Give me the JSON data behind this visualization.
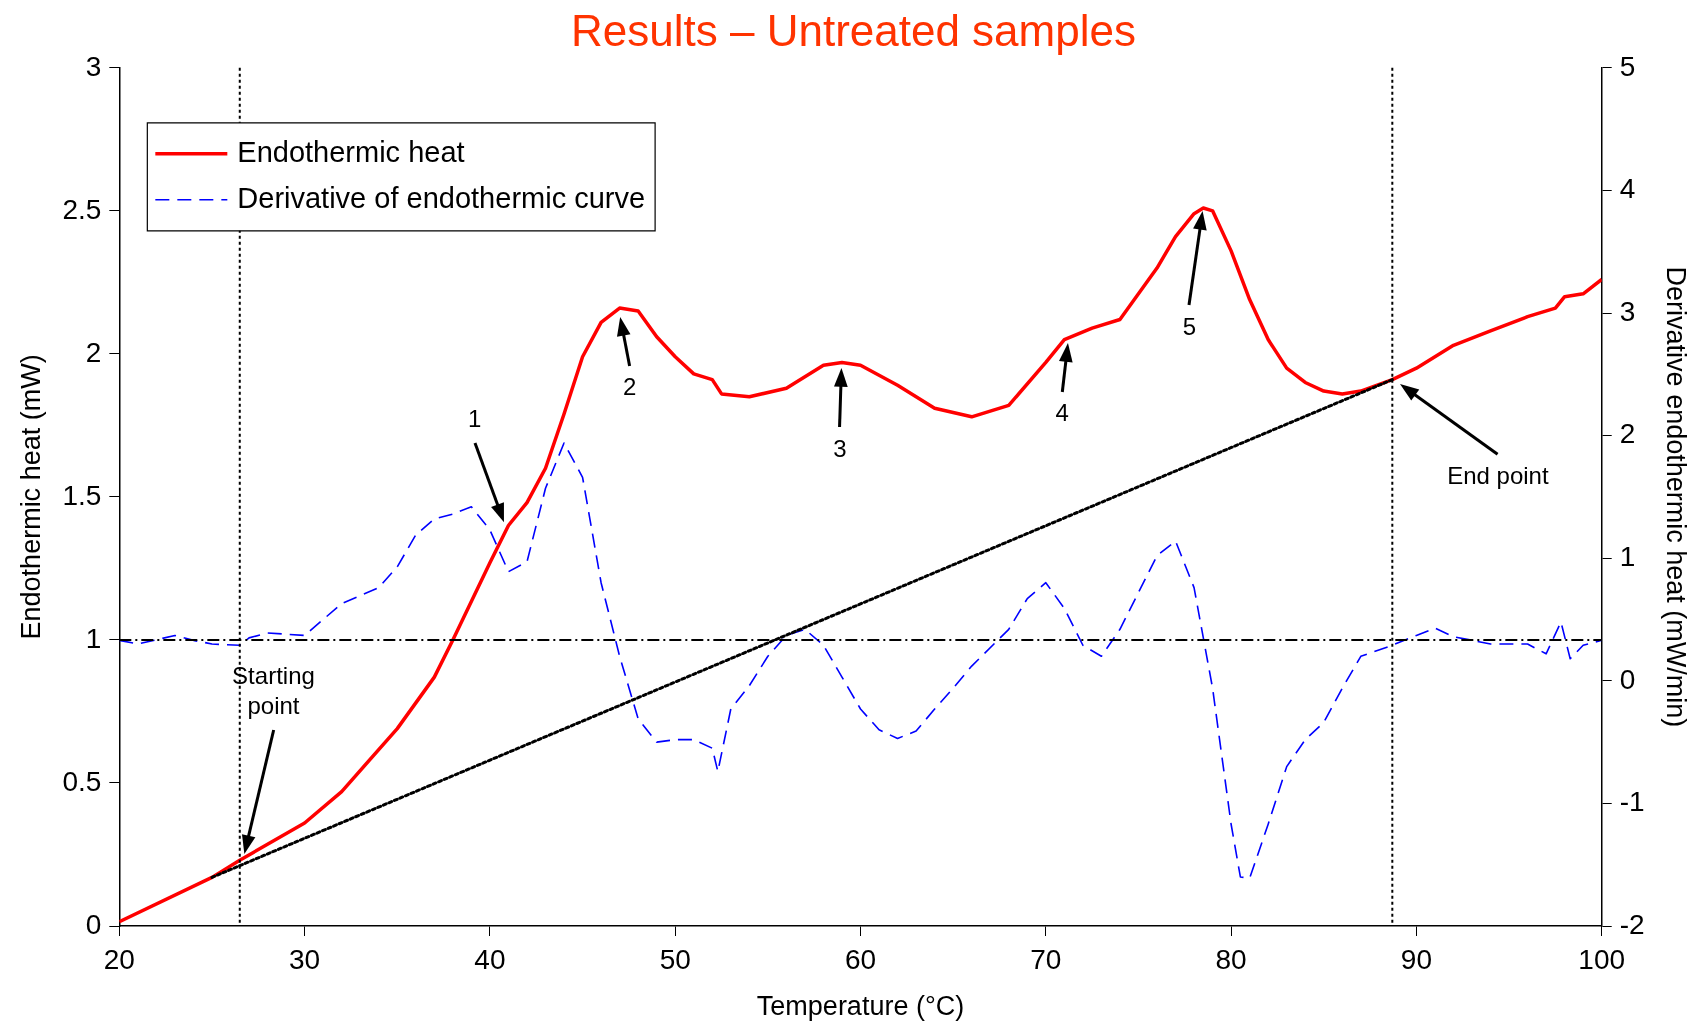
{
  "chart_data": {
    "type": "line",
    "title": "Results – Untreated samples",
    "xlabel": "Temperature (°C)",
    "ylabel": "Endothermic heat (mW)",
    "y2label": "Derivative endothermic heat (mW/min)",
    "xlim": [
      20,
      100
    ],
    "xticks": [
      20,
      30,
      40,
      50,
      60,
      70,
      80,
      90,
      100
    ],
    "ylim": [
      0,
      3
    ],
    "yticks": [
      0,
      0.5,
      1,
      1.5,
      2,
      2.5,
      3
    ],
    "y2lim": [
      -2,
      5
    ],
    "y2ticks": [
      -2,
      -1,
      0,
      1,
      2,
      3,
      4,
      5
    ],
    "grid": false,
    "legend": "top left",
    "marker": "none",
    "series": [
      {
        "name": "Endothermic heat",
        "color": "#ff0000",
        "line_style": "solid",
        "x": [
          20,
          25,
          26.5,
          30,
          32,
          35,
          37,
          38,
          40,
          41,
          42,
          43,
          44,
          45,
          46,
          47,
          48,
          49,
          50,
          51,
          52,
          52.5,
          54,
          56,
          58,
          59,
          60,
          62,
          64,
          66,
          68,
          70,
          71,
          72.5,
          74,
          75,
          76,
          77,
          78,
          78.5,
          79,
          80,
          81,
          82,
          83,
          84,
          85,
          86,
          87,
          88.7,
          90,
          92,
          94,
          96,
          97.5,
          98,
          99,
          100
        ],
        "values": [
          0.015,
          0.17,
          0.23,
          0.36,
          0.47,
          0.69,
          0.87,
          1.0,
          1.27,
          1.4,
          1.48,
          1.6,
          1.79,
          1.99,
          2.11,
          2.16,
          2.15,
          2.06,
          1.99,
          1.93,
          1.91,
          1.86,
          1.85,
          1.88,
          1.96,
          1.97,
          1.96,
          1.89,
          1.81,
          1.78,
          1.82,
          1.97,
          2.05,
          2.09,
          2.12,
          2.21,
          2.3,
          2.41,
          2.49,
          2.51,
          2.5,
          2.36,
          2.19,
          2.05,
          1.95,
          1.9,
          1.87,
          1.86,
          1.87,
          1.91,
          1.95,
          2.03,
          2.08,
          2.13,
          2.16,
          2.2,
          2.21,
          2.26
        ]
      },
      {
        "name": "Derivative of endothermic curve",
        "color": "#0000ff",
        "line_style": "dashed",
        "axis": "y2",
        "x": [
          20,
          21,
          23,
          24,
          25,
          26.5,
          27,
          28,
          30,
          31,
          32,
          34,
          35,
          36,
          37,
          38,
          39,
          40,
          41,
          42,
          43,
          44,
          45,
          46,
          47,
          48,
          49,
          50,
          51,
          52,
          52.3,
          53,
          54,
          55,
          56,
          57,
          58,
          59,
          60,
          61,
          62,
          63,
          64,
          65,
          66,
          68,
          69,
          70,
          71,
          72,
          73,
          74,
          75,
          76,
          77,
          78,
          79,
          80,
          80.5,
          81,
          82,
          83,
          84,
          85,
          86,
          87,
          88.7,
          90,
          91,
          92,
          94,
          96,
          97,
          97.8,
          98.3,
          99,
          100
        ],
        "values": [
          0.33,
          0.3,
          0.37,
          0.33,
          0.3,
          0.29,
          0.35,
          0.39,
          0.37,
          0.5,
          0.63,
          0.76,
          0.93,
          1.19,
          1.32,
          1.36,
          1.42,
          1.23,
          0.89,
          0.97,
          1.57,
          1.94,
          1.66,
          0.8,
          0.2,
          -0.31,
          -0.5,
          -0.48,
          -0.48,
          -0.55,
          -0.74,
          -0.23,
          -0.04,
          0.2,
          0.37,
          0.42,
          0.29,
          0.03,
          -0.23,
          -0.4,
          -0.47,
          -0.41,
          -0.23,
          -0.06,
          0.12,
          0.42,
          0.67,
          0.8,
          0.59,
          0.29,
          0.2,
          0.42,
          0.72,
          1.02,
          1.14,
          0.76,
          -0.06,
          -1.17,
          -1.6,
          -1.61,
          -1.17,
          -0.7,
          -0.48,
          -0.34,
          -0.06,
          0.2,
          0.29,
          0.37,
          0.43,
          0.36,
          0.3,
          0.3,
          0.22,
          0.48,
          0.18,
          0.29,
          0.33
        ]
      },
      {
        "color": "#000000",
        "line_style": "dotted",
        "x": [
          25,
          88.7
        ],
        "values": [
          0.17,
          1.91
        ]
      }
    ],
    "ref_lines": [
      {
        "axis": "y",
        "value": 1,
        "color": "#000000",
        "line_style": "dashdot"
      },
      {
        "axis": "x",
        "value": 26.5,
        "color": "#000000",
        "line_style": "dotted"
      },
      {
        "axis": "x",
        "value": 88.7,
        "color": "#000000",
        "line_style": "dotted"
      }
    ],
    "annotations": [
      "1",
      {
        "text": "2",
        "x": 47,
        "y": 2.14
      },
      {
        "text": "3",
        "x": 59,
        "y": 1.96
      },
      {
        "text": "4",
        "x": 71.2,
        "y": 2.05
      },
      "5",
      "Starting point",
      "End point"
    ]
  }
}
